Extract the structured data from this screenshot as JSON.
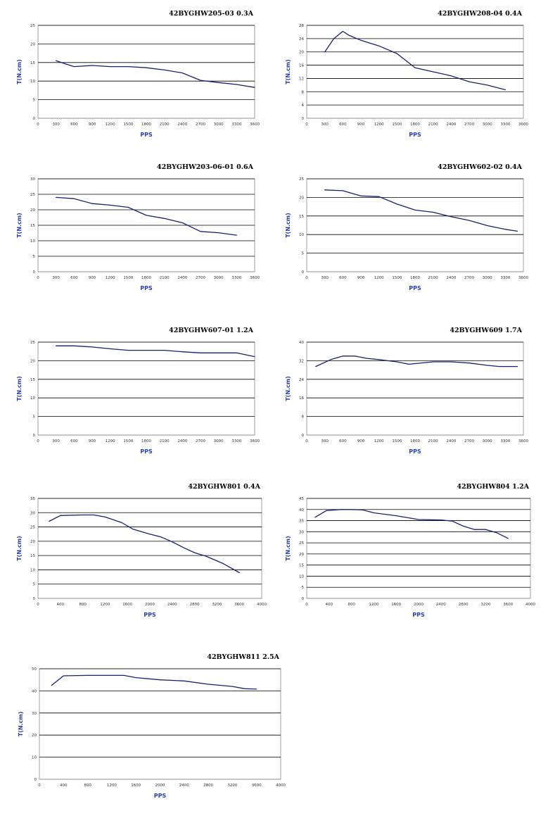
{
  "colors": {
    "curve": "#1a1f6e",
    "axis_title": "#2a3fae",
    "grid": "#000000"
  },
  "chart_data": [
    {
      "type": "line",
      "title": "42BYGHW205-03 0.3A",
      "xlabel": "PPS",
      "ylabel": "T(N.cm)",
      "xlim": [
        0,
        3600
      ],
      "ylim": [
        0,
        25
      ],
      "xticks": [
        "0",
        "300",
        "600",
        "900",
        "1200",
        "1500",
        "1800",
        "2100",
        "2400",
        "2700",
        "3000",
        "3300",
        "3600"
      ],
      "yticks": [
        "0",
        "5",
        "10",
        "15",
        "20",
        "25"
      ],
      "grid": "horizontal",
      "x": [
        300,
        500,
        600,
        900,
        1200,
        1500,
        1800,
        2100,
        2400,
        2700,
        3000,
        3300,
        3600
      ],
      "values": [
        15.5,
        14.4,
        13.9,
        14.2,
        13.9,
        13.9,
        13.6,
        13.0,
        12.2,
        10.2,
        9.6,
        9.1,
        8.3
      ]
    },
    {
      "type": "line",
      "title": "42BYGHW208-04 0.4A",
      "xlabel": "PPS",
      "ylabel": "T(N.cm)",
      "xlim": [
        0,
        3600
      ],
      "ylim": [
        0,
        28
      ],
      "xticks": [
        "0",
        "300",
        "600",
        "900",
        "1200",
        "1500",
        "1800",
        "2100",
        "2400",
        "2700",
        "3000",
        "3300",
        "3600"
      ],
      "yticks": [
        "0",
        "4",
        "8",
        "12",
        "16",
        "20",
        "24",
        "28"
      ],
      "grid": "horizontal",
      "x": [
        300,
        450,
        600,
        700,
        900,
        1200,
        1500,
        1800,
        2100,
        2400,
        2700,
        3000,
        3300
      ],
      "values": [
        20.0,
        24.0,
        26.2,
        25.0,
        23.5,
        21.8,
        19.5,
        15.2,
        14.0,
        12.8,
        11.0,
        10.0,
        8.6
      ]
    },
    {
      "type": "line",
      "title": "42BYGHW203-06-01 0.6A",
      "xlabel": "PPS",
      "ylabel": "T(N.cm)",
      "xlim": [
        0,
        3600
      ],
      "ylim": [
        0,
        30
      ],
      "xticks": [
        "0",
        "300",
        "600",
        "900",
        "1200",
        "1500",
        "1800",
        "2100",
        "2400",
        "2700",
        "3000",
        "3300",
        "3600"
      ],
      "yticks": [
        "0",
        "5",
        "10",
        "15",
        "20",
        "25",
        "30"
      ],
      "grid": "horizontal",
      "x": [
        300,
        600,
        900,
        1200,
        1500,
        1800,
        2100,
        2400,
        2700,
        3000,
        3300
      ],
      "values": [
        24.0,
        23.6,
        22.0,
        21.5,
        20.8,
        18.2,
        17.2,
        15.8,
        13.0,
        12.6,
        11.8
      ]
    },
    {
      "type": "line",
      "title": "42BYGHW602-02 0.4A",
      "xlabel": "PPS",
      "ylabel": "T(N.cm)",
      "xlim": [
        0,
        3600
      ],
      "ylim": [
        0,
        25
      ],
      "xticks": [
        "0",
        "300",
        "600",
        "900",
        "1200",
        "1500",
        "1800",
        "2100",
        "2400",
        "2700",
        "3000",
        "3300",
        "3600"
      ],
      "yticks": [
        "0",
        "5",
        "10",
        "15",
        "20",
        "25"
      ],
      "grid": "horizontal",
      "x": [
        300,
        600,
        900,
        1200,
        1500,
        1800,
        2100,
        2400,
        2700,
        3000,
        3300,
        3500
      ],
      "values": [
        22.0,
        21.8,
        20.4,
        20.2,
        18.2,
        16.6,
        16.0,
        14.8,
        13.8,
        12.4,
        11.4,
        10.9
      ]
    },
    {
      "type": "line",
      "title": "42BYGHW607-01 1.2A",
      "xlabel": "PPS",
      "ylabel": "T(N.cm)",
      "xlim": [
        0,
        3600
      ],
      "ylim": [
        0,
        25
      ],
      "xticks": [
        "0",
        "300",
        "600",
        "900",
        "1200",
        "1500",
        "1800",
        "2100",
        "2400",
        "2700",
        "3000",
        "3300",
        "3600"
      ],
      "yticks": [
        "0",
        "5",
        "10",
        "15",
        "20",
        "25"
      ],
      "grid": "horizontal",
      "x": [
        300,
        600,
        900,
        1200,
        1500,
        1800,
        2100,
        2400,
        2700,
        3000,
        3300,
        3600
      ],
      "values": [
        24.0,
        24.0,
        23.7,
        23.2,
        22.8,
        22.8,
        22.8,
        22.4,
        22.1,
        22.1,
        22.1,
        21.1
      ]
    },
    {
      "type": "line",
      "title": "42BYGHW609 1.7A",
      "xlabel": "PPS",
      "ylabel": "T(N.cm)",
      "xlim": [
        0,
        3600
      ],
      "ylim": [
        0,
        40
      ],
      "xticks": [
        "0",
        "300",
        "600",
        "900",
        "1200",
        "1500",
        "1800",
        "2100",
        "2400",
        "2700",
        "3000",
        "3300",
        "3600"
      ],
      "yticks": [
        "0",
        "8",
        "16",
        "24",
        "32",
        "40"
      ],
      "grid": "horizontal",
      "x": [
        150,
        400,
        600,
        800,
        1000,
        1200,
        1500,
        1700,
        2100,
        2400,
        2700,
        3000,
        3200,
        3500
      ],
      "values": [
        29.5,
        32.5,
        34.0,
        34.0,
        33.0,
        32.5,
        31.5,
        30.5,
        31.5,
        31.5,
        31.0,
        30.0,
        29.5,
        29.5
      ]
    },
    {
      "type": "line",
      "title": "42BYGHW801 0.4A",
      "xlabel": "PPS",
      "ylabel": "T(N.cm)",
      "xlim": [
        0,
        4000
      ],
      "ylim": [
        0,
        35
      ],
      "xticks": [
        "0",
        "400",
        "800",
        "1200",
        "1600",
        "2000",
        "2400",
        "2800",
        "3200",
        "3600",
        "4000"
      ],
      "yticks": [
        "0",
        "5",
        "10",
        "15",
        "20",
        "25",
        "30",
        "35"
      ],
      "grid": "horizontal",
      "x": [
        200,
        400,
        800,
        1000,
        1200,
        1500,
        1700,
        2000,
        2200,
        2400,
        2600,
        2800,
        3000,
        3300,
        3600
      ],
      "values": [
        27.0,
        29.0,
        29.2,
        29.2,
        28.5,
        26.5,
        24.2,
        22.5,
        21.5,
        19.8,
        17.8,
        16.0,
        14.8,
        12.3,
        9.0
      ]
    },
    {
      "type": "line",
      "title": "42BYGHW804 1.2A",
      "xlabel": "PPS",
      "ylabel": "T(N.cm)",
      "xlim": [
        0,
        4000
      ],
      "ylim": [
        0,
        45
      ],
      "xticks": [
        "0",
        "400",
        "800",
        "1200",
        "1600",
        "2000",
        "2400",
        "2800",
        "3200",
        "3600",
        "4000"
      ],
      "yticks": [
        "0",
        "5",
        "10",
        "15",
        "20",
        "25",
        "30",
        "35",
        "40",
        "45"
      ],
      "grid": "horizontal",
      "x": [
        150,
        350,
        600,
        800,
        1000,
        1200,
        1600,
        2000,
        2400,
        2600,
        2800,
        3000,
        3200,
        3400,
        3600
      ],
      "values": [
        36.5,
        39.5,
        40.0,
        40.0,
        39.8,
        38.5,
        37.2,
        35.5,
        35.3,
        34.8,
        32.5,
        31.0,
        31.0,
        29.5,
        27.0
      ]
    },
    {
      "type": "line",
      "title": "42BYGHW811 2.5A",
      "xlabel": "PPS",
      "ylabel": "T(N.cm)",
      "xlim": [
        0,
        4000
      ],
      "ylim": [
        0,
        50
      ],
      "xticks": [
        "0",
        "400",
        "800",
        "1200",
        "1600",
        "2000",
        "2400",
        "2800",
        "3200",
        "3600",
        "4000"
      ],
      "yticks": [
        "0",
        "10",
        "20",
        "30",
        "40",
        "50"
      ],
      "grid": "horizontal",
      "x": [
        200,
        400,
        800,
        1200,
        1400,
        1600,
        2000,
        2400,
        2800,
        3200,
        3400,
        3600
      ],
      "values": [
        42.5,
        46.8,
        47.0,
        47.0,
        47.0,
        46.0,
        45.0,
        44.5,
        43.0,
        42.0,
        41.0,
        40.8
      ]
    }
  ]
}
